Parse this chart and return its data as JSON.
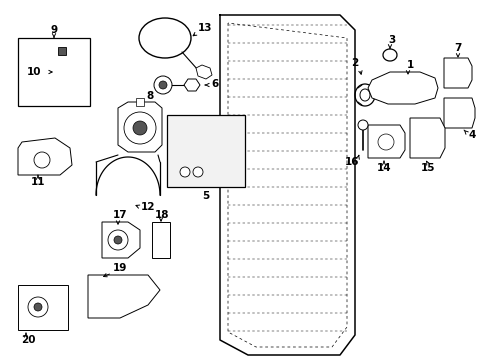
{
  "bg_color": "#ffffff",
  "fig_width": 4.89,
  "fig_height": 3.6,
  "dpi": 100,
  "label_fontsize": 7.5,
  "black": "#000000",
  "gray": "#555555",
  "lightgray": "#cccccc"
}
